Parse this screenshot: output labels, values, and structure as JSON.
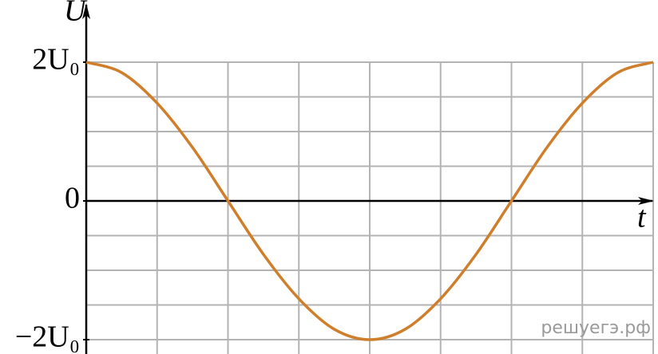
{
  "chart_data": {
    "type": "line",
    "y_label": "U",
    "x_label": "t",
    "watermark": "решуегэ.рф",
    "x": [
      0,
      0.5,
      1,
      1.5,
      2,
      2.5,
      3,
      3.5,
      4,
      4.5,
      5,
      5.5,
      6,
      6.5,
      7,
      7.5,
      8
    ],
    "series": [
      {
        "color": "#cf7f2c",
        "values": [
          2,
          1.85,
          1.41,
          0.77,
          0,
          -0.77,
          -1.41,
          -1.85,
          -2,
          -1.85,
          -1.41,
          -0.77,
          0,
          0.77,
          1.41,
          1.85,
          2
        ]
      }
    ],
    "xlim": [
      0,
      8
    ],
    "ylim": [
      -2,
      2
    ],
    "yticks": [
      {
        "value": 2,
        "label": "2U₀"
      },
      0,
      {
        "value": -2,
        "label": "−2U₀"
      }
    ],
    "grid": true
  }
}
